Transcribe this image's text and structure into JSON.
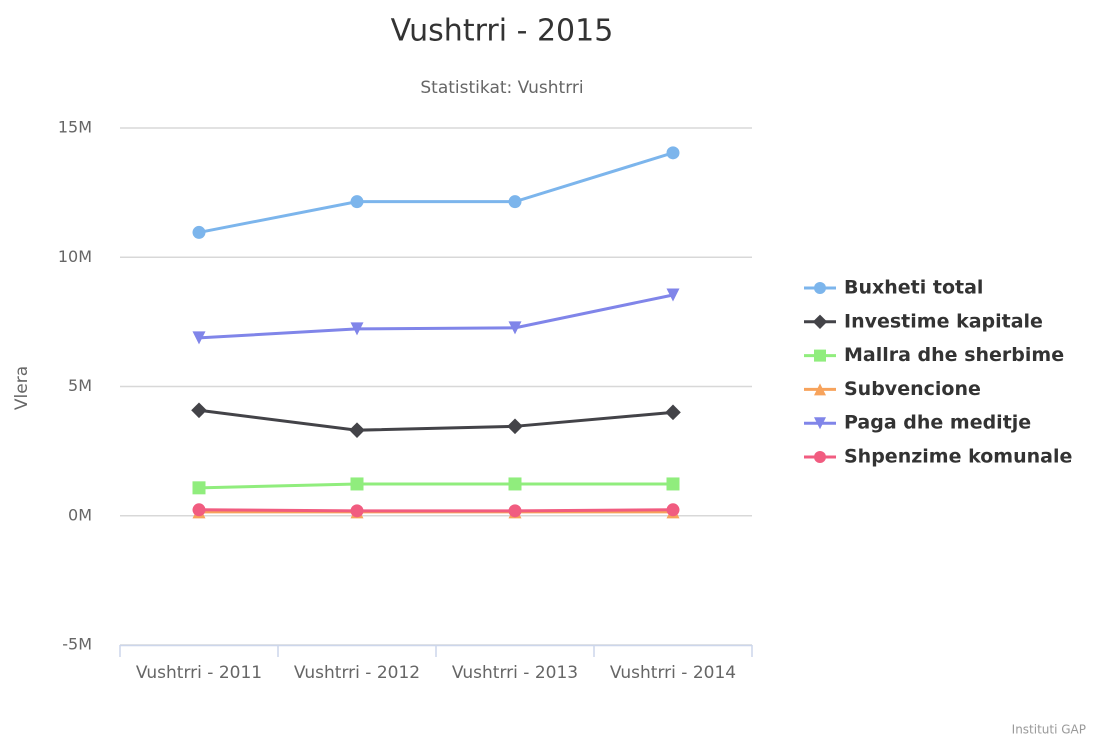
{
  "chart_data": {
    "type": "line",
    "title": "Vushtrri - 2015",
    "subtitle": "Statistikat: Vushtrri",
    "y_axis_label": "Vlera",
    "credits": "Instituti GAP",
    "categories": [
      "Vushtrri - 2011",
      "Vushtrri - 2012",
      "Vushtrri - 2013",
      "Vushtrri - 2014"
    ],
    "ylim": [
      -5000000,
      15000000
    ],
    "yticks": [
      {
        "value": -5000000,
        "label": "-5M"
      },
      {
        "value": 0,
        "label": "0M"
      },
      {
        "value": 5000000,
        "label": "5M"
      },
      {
        "value": 10000000,
        "label": "10M"
      },
      {
        "value": 15000000,
        "label": "15M"
      }
    ],
    "grid": true,
    "legend": "right",
    "series": [
      {
        "name": "Buxheti total",
        "color": "#7cb5ec",
        "marker": "circle",
        "values": [
          10960000,
          12150000,
          12150000,
          14040000
        ]
      },
      {
        "name": "Investime kapitale",
        "color": "#434348",
        "marker": "diamond",
        "values": [
          4080000,
          3310000,
          3460000,
          4000000
        ]
      },
      {
        "name": "Mallra dhe sherbime",
        "color": "#90ed7d",
        "marker": "square",
        "values": [
          1080000,
          1230000,
          1230000,
          1230000
        ]
      },
      {
        "name": "Subvencione",
        "color": "#f7a35c",
        "marker": "triangle",
        "values": [
          150000,
          150000,
          150000,
          150000
        ]
      },
      {
        "name": "Paga dhe meditje",
        "color": "#8085e9",
        "marker": "triangle-down",
        "values": [
          6880000,
          7230000,
          7270000,
          8540000
        ]
      },
      {
        "name": "Shpenzime komunale",
        "color": "#f15c80",
        "marker": "circle",
        "values": [
          230000,
          190000,
          190000,
          230000
        ]
      }
    ]
  }
}
